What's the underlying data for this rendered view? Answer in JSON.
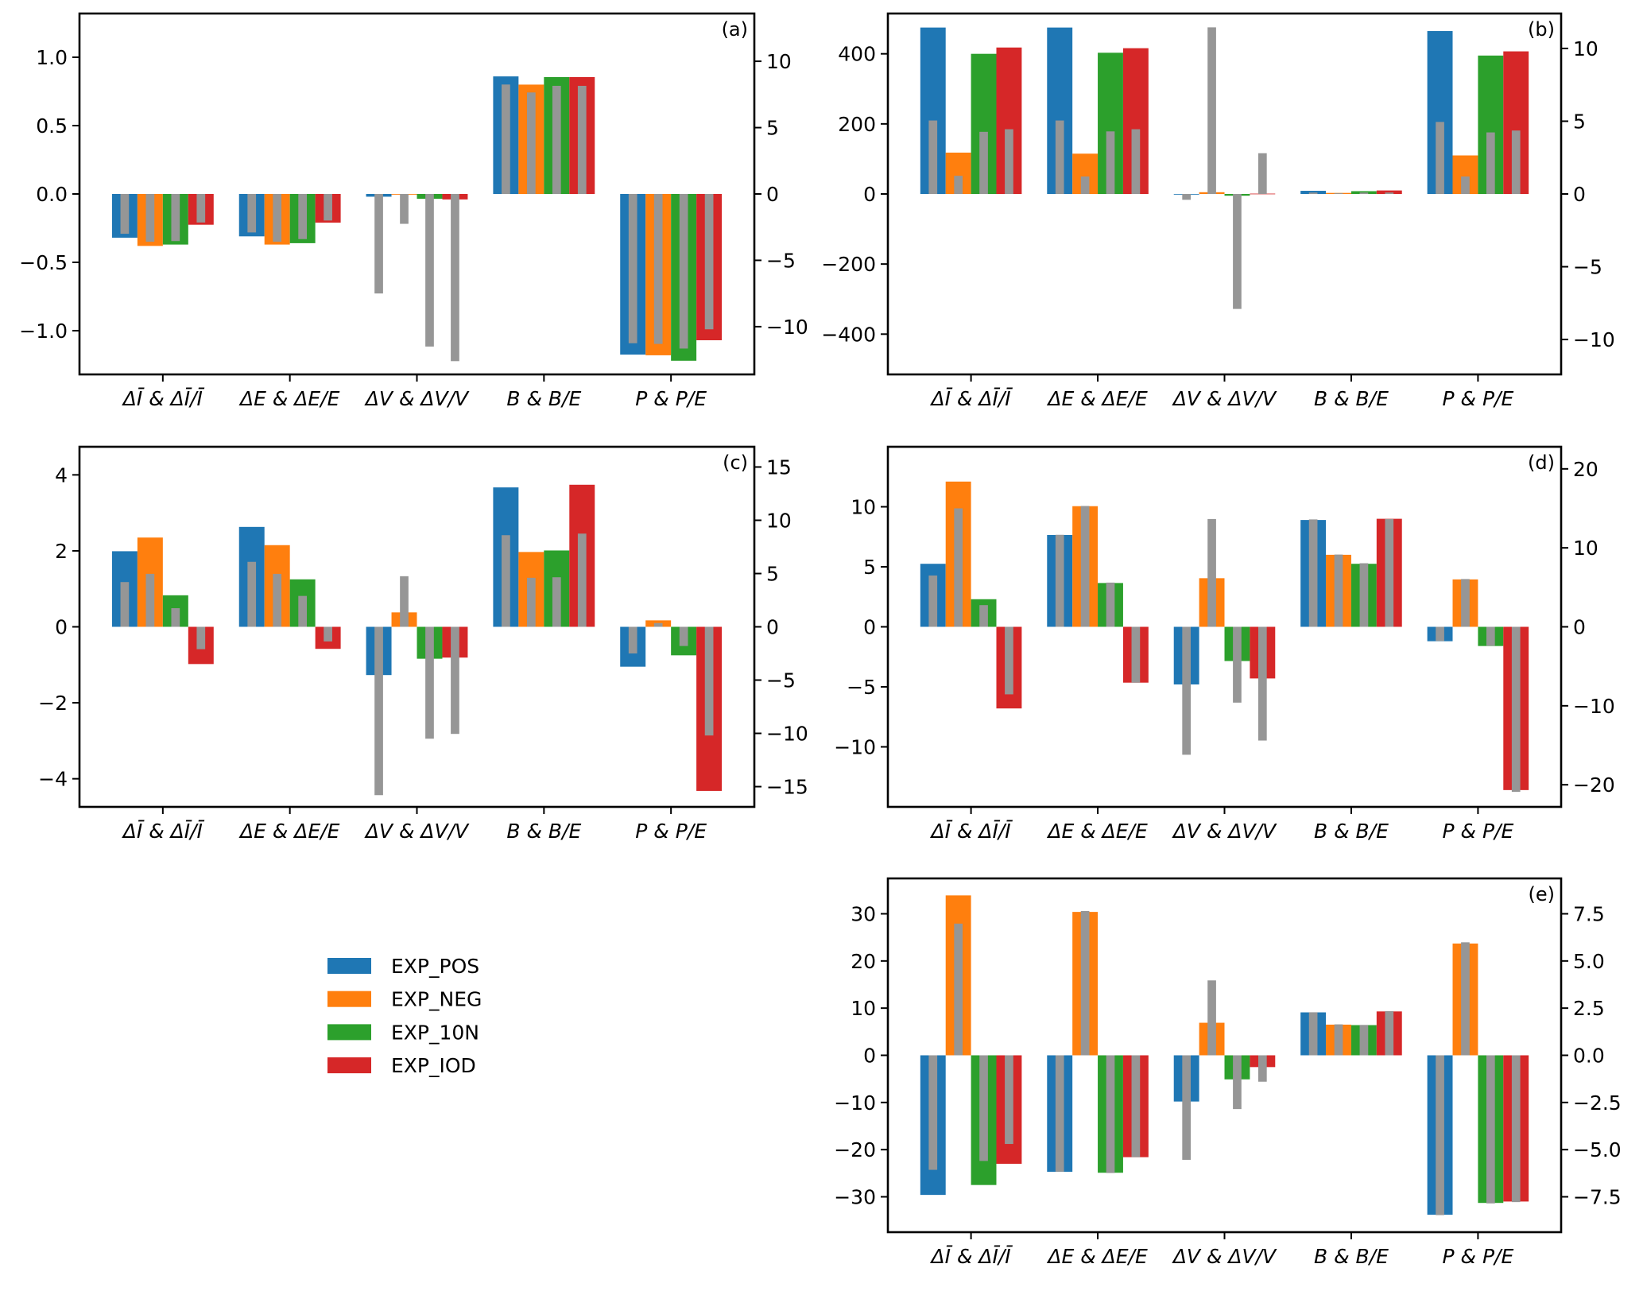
{
  "chart_data": {
    "type": "bar",
    "description": "Five twin-axis grouped bar panels; colored bars use left axis, narrow grey bars use right axis",
    "categories": [
      "ΔĪ & ΔĪ/Ī",
      "ΔE & ΔE/E",
      "ΔV & ΔV/V",
      "B & B/E",
      "P & P/E"
    ],
    "legend": {
      "placement": "lower-left (empty subplot area)",
      "entries": [
        {
          "name": "EXP_POS",
          "color": "#1f77b4"
        },
        {
          "name": "EXP_NEG",
          "color": "#ff7f0e"
        },
        {
          "name": "EXP_10N",
          "color": "#2ca02c"
        },
        {
          "name": "EXP_IOD",
          "color": "#d62728"
        }
      ]
    },
    "secondary_bar_color": "#969696",
    "panels": [
      {
        "label": "(a)",
        "ylim_left": [
          -1.32,
          1.32
        ],
        "yticks_left": [
          -1.0,
          -0.5,
          0.0,
          0.5,
          1.0
        ],
        "ytick_labels_left": [
          "−1.0",
          "−0.5",
          "0.0",
          "0.5",
          "1.0"
        ],
        "ylim_right": [
          -13.6,
          13.6
        ],
        "yticks_right": [
          -10,
          -5,
          0,
          5,
          10
        ],
        "ytick_labels_right": [
          "−10",
          "−5",
          "0",
          "5",
          "10"
        ],
        "series": [
          {
            "name": "EXP_POS",
            "values": [
              -0.32,
              -0.31,
              -0.02,
              0.86,
              -1.175
            ],
            "ratio_values": [
              -3.0,
              -2.9,
              -7.5,
              8.25,
              -11.25
            ]
          },
          {
            "name": "EXP_NEG",
            "values": [
              -0.38,
              -0.37,
              -0.005,
              0.8,
              -1.18
            ],
            "ratio_values": [
              -3.6,
              -3.6,
              -2.25,
              7.65,
              -11.3
            ]
          },
          {
            "name": "EXP_10N",
            "values": [
              -0.37,
              -0.36,
              -0.035,
              0.855,
              -1.22
            ],
            "ratio_values": [
              -3.55,
              -3.4,
              -11.5,
              8.15,
              -11.65
            ]
          },
          {
            "name": "EXP_IOD",
            "values": [
              -0.225,
              -0.21,
              -0.04,
              0.855,
              -1.07
            ],
            "ratio_values": [
              -2.15,
              -2.0,
              -12.6,
              8.15,
              -10.2
            ]
          }
        ]
      },
      {
        "label": "(b)",
        "ylim_left": [
          -515,
          515
        ],
        "yticks_left": [
          -400,
          -200,
          0,
          200,
          400
        ],
        "ytick_labels_left": [
          "−400",
          "−200",
          "0",
          "200",
          "400"
        ],
        "ylim_right": [
          -12.4,
          12.4
        ],
        "yticks_right": [
          -10,
          -5,
          0,
          5,
          10
        ],
        "ytick_labels_right": [
          "−10",
          "−5",
          "0",
          "5",
          "10"
        ],
        "series": [
          {
            "name": "EXP_POS",
            "values": [
              475,
              475,
              -1,
              9,
              465
            ],
            "ratio_values": [
              5.05,
              5.05,
              -0.4,
              0.1,
              4.95
            ]
          },
          {
            "name": "EXP_NEG",
            "values": [
              118,
              115,
              5,
              3,
              110
            ],
            "ratio_values": [
              1.25,
              1.2,
              11.45,
              0.05,
              1.2
            ]
          },
          {
            "name": "EXP_10N",
            "values": [
              400,
              403,
              -5,
              8,
              395
            ],
            "ratio_values": [
              4.27,
              4.3,
              -7.9,
              0.1,
              4.23
            ]
          },
          {
            "name": "EXP_IOD",
            "values": [
              418,
              416,
              1,
              10,
              407
            ],
            "ratio_values": [
              4.45,
              4.45,
              2.8,
              0.1,
              4.36
            ]
          }
        ]
      },
      {
        "label": "(c)",
        "ylim_left": [
          -4.74,
          4.74
        ],
        "yticks_left": [
          -4,
          -2,
          0,
          2,
          4
        ],
        "ytick_labels_left": [
          "−4",
          "−2",
          "0",
          "2",
          "4"
        ],
        "ylim_right": [
          -16.9,
          16.9
        ],
        "yticks_right": [
          -15,
          -10,
          -5,
          0,
          5,
          10,
          15
        ],
        "ytick_labels_right": [
          "−15",
          "−10",
          "−5",
          "0",
          "5",
          "10",
          "15"
        ],
        "series": [
          {
            "name": "EXP_POS",
            "values": [
              1.99,
              2.63,
              -1.27,
              3.67,
              -1.05
            ],
            "ratio_values": [
              4.2,
              6.1,
              -15.8,
              8.6,
              -2.5
            ]
          },
          {
            "name": "EXP_NEG",
            "values": [
              2.35,
              2.15,
              0.38,
              1.97,
              0.17
            ],
            "ratio_values": [
              4.97,
              4.97,
              4.75,
              4.6,
              0.35
            ]
          },
          {
            "name": "EXP_10N",
            "values": [
              0.83,
              1.25,
              -0.84,
              2.01,
              -0.75
            ],
            "ratio_values": [
              1.75,
              2.9,
              -10.5,
              4.65,
              -1.8
            ]
          },
          {
            "name": "EXP_IOD",
            "values": [
              -0.98,
              -0.58,
              -0.81,
              3.74,
              -4.32
            ],
            "ratio_values": [
              -2.1,
              -1.37,
              -10.05,
              8.75,
              -10.2
            ]
          }
        ]
      },
      {
        "label": "(d)",
        "ylim_left": [
          -15,
          15
        ],
        "yticks_left": [
          -10,
          -5,
          0,
          5,
          10
        ],
        "ytick_labels_left": [
          "−10",
          "−5",
          "0",
          "5",
          "10"
        ],
        "ylim_right": [
          -22.8,
          22.8
        ],
        "yticks_right": [
          -20,
          -10,
          0,
          10,
          20
        ],
        "ytick_labels_right": [
          "−20",
          "−10",
          "0",
          "10",
          "20"
        ],
        "series": [
          {
            "name": "EXP_POS",
            "values": [
              5.25,
              7.65,
              -4.8,
              8.9,
              -1.2
            ],
            "ratio_values": [
              6.5,
              11.65,
              -16.2,
              13.6,
              -1.8
            ]
          },
          {
            "name": "EXP_NEG",
            "values": [
              12.1,
              10.05,
              4.05,
              6.0,
              3.95
            ],
            "ratio_values": [
              15.0,
              15.3,
              13.65,
              9.15,
              6.05
            ]
          },
          {
            "name": "EXP_10N",
            "values": [
              2.3,
              3.65,
              -2.85,
              5.25,
              -1.6
            ],
            "ratio_values": [
              2.75,
              5.6,
              -9.6,
              8.05,
              -2.4
            ]
          },
          {
            "name": "EXP_IOD",
            "values": [
              -6.8,
              -4.65,
              -4.3,
              9.0,
              -13.6
            ],
            "ratio_values": [
              -8.55,
              -7.07,
              -14.4,
              13.65,
              -20.9
            ]
          }
        ]
      },
      {
        "label": "(e)",
        "ylim_left": [
          -37.5,
          37.5
        ],
        "yticks_left": [
          -30,
          -20,
          -10,
          0,
          10,
          20,
          30
        ],
        "ytick_labels_left": [
          "−30",
          "−20",
          "−10",
          "0",
          "10",
          "20",
          "30"
        ],
        "ylim_right": [
          -9.375,
          9.375
        ],
        "yticks_right": [
          -7.5,
          -5.0,
          -2.5,
          0.0,
          2.5,
          5.0,
          7.5
        ],
        "ytick_labels_right": [
          "−7.5",
          "−5.0",
          "−2.5",
          "0.0",
          "2.5",
          "5.0",
          "7.5"
        ],
        "series": [
          {
            "name": "EXP_POS",
            "values": [
              -29.6,
              -24.7,
              -9.8,
              9.1,
              -33.8
            ],
            "ratio_values": [
              -6.07,
              -6.17,
              -5.54,
              2.28,
              -8.47
            ]
          },
          {
            "name": "EXP_NEG",
            "values": [
              33.9,
              30.4,
              6.9,
              6.5,
              23.7
            ],
            "ratio_values": [
              6.98,
              7.65,
              3.97,
              1.64,
              5.99
            ]
          },
          {
            "name": "EXP_10N",
            "values": [
              -27.5,
              -24.9,
              -5.1,
              6.4,
              -31.3
            ],
            "ratio_values": [
              -5.6,
              -6.24,
              -2.85,
              1.61,
              -7.85
            ]
          },
          {
            "name": "EXP_IOD",
            "values": [
              -23.0,
              -21.6,
              -2.5,
              9.3,
              -31.0
            ],
            "ratio_values": [
              -4.7,
              -5.4,
              -1.4,
              2.34,
              -7.78
            ]
          }
        ]
      }
    ]
  }
}
